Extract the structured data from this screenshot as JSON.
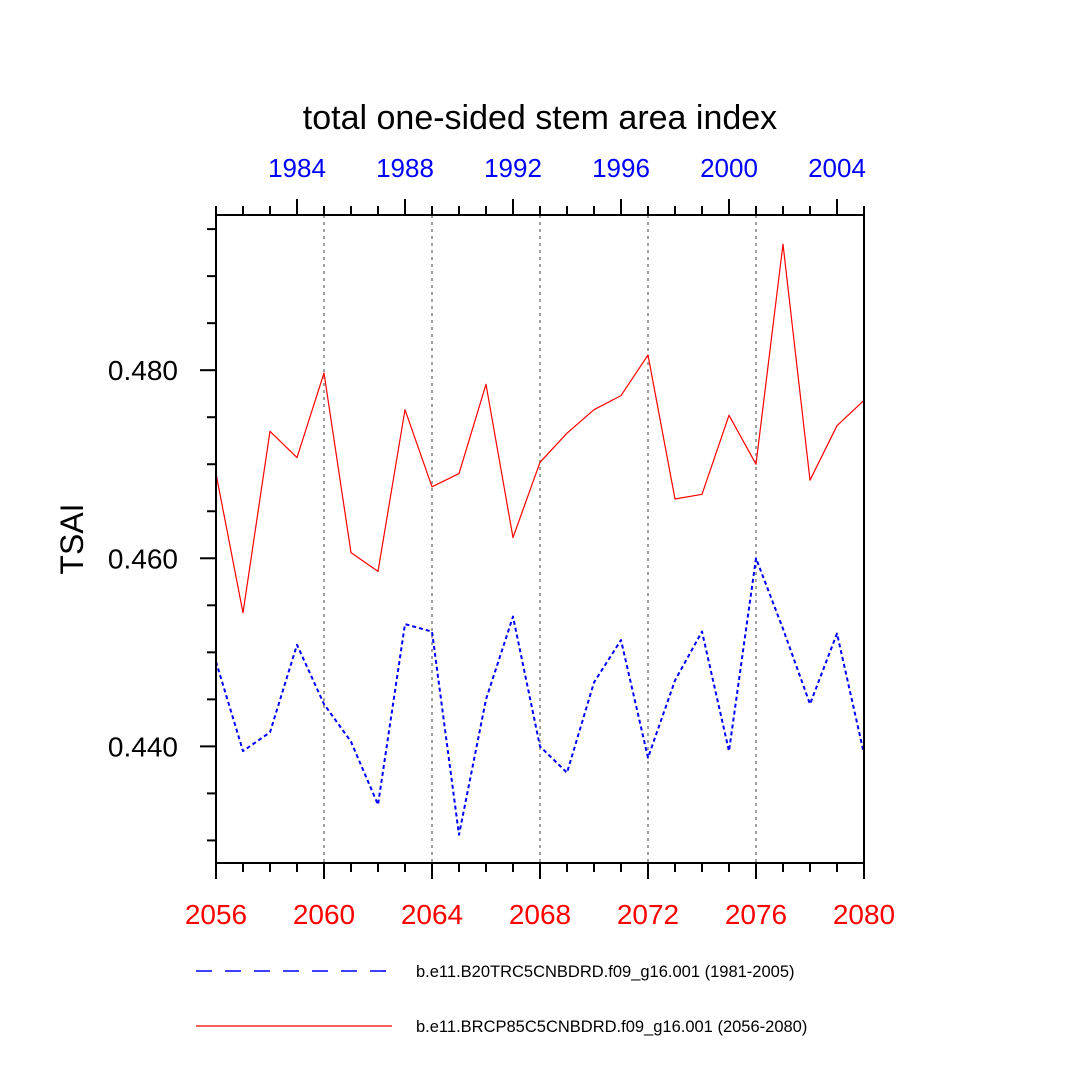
{
  "chart_data": {
    "type": "line",
    "title": "total one-sided stem area index",
    "ylabel": "TSAI",
    "xlabel": "",
    "x_bottom": {
      "range": [
        2056,
        2080
      ],
      "ticks": [
        2056,
        2060,
        2064,
        2068,
        2072,
        2076,
        2080
      ],
      "color": "#ff0000"
    },
    "x_top": {
      "range": [
        1981,
        2005
      ],
      "ticks": [
        1984,
        1988,
        1992,
        1996,
        2000,
        2004
      ],
      "color": "#0000ff"
    },
    "y": {
      "range": [
        0.4276,
        0.4965
      ],
      "ticks": [
        0.44,
        0.46,
        0.48
      ],
      "tick_labels": [
        "0.440",
        "0.460",
        "0.480"
      ],
      "minor_step": 0.005
    },
    "grid": "vertical dotted at major bottom ticks",
    "legend_position": "bottom",
    "series": [
      {
        "name": "b.e11.B20TRC5CNBDRD.f09_g16.001 (1981-2005)",
        "axis": "top",
        "color": "#0000ff",
        "style": "dashed",
        "x": [
          1981,
          1982,
          1983,
          1984,
          1985,
          1986,
          1987,
          1988,
          1989,
          1990,
          1991,
          1992,
          1993,
          1994,
          1995,
          1996,
          1997,
          1998,
          1999,
          2000,
          2001,
          2002,
          2003,
          2004,
          2005
        ],
        "values": [
          0.449,
          0.4395,
          0.4415,
          0.4508,
          0.4445,
          0.4405,
          0.4338,
          0.453,
          0.4522,
          0.4306,
          0.445,
          0.4538,
          0.44,
          0.4372,
          0.4468,
          0.4513,
          0.4388,
          0.447,
          0.4522,
          0.4395,
          0.46,
          0.4525,
          0.4445,
          0.452,
          0.4392
        ]
      },
      {
        "name": "b.e11.BRCP85C5CNBDRD.f09_g16.001 (2056-2080)",
        "axis": "bottom",
        "color": "#ff0000",
        "style": "solid",
        "x": [
          2056,
          2057,
          2058,
          2059,
          2060,
          2061,
          2062,
          2063,
          2064,
          2065,
          2066,
          2067,
          2068,
          2069,
          2070,
          2071,
          2072,
          2073,
          2074,
          2075,
          2076,
          2077,
          2078,
          2079,
          2080
        ],
        "values": [
          0.469,
          0.4542,
          0.4735,
          0.4707,
          0.4797,
          0.4606,
          0.4586,
          0.4758,
          0.4676,
          0.469,
          0.4785,
          0.4622,
          0.4702,
          0.4733,
          0.4758,
          0.4773,
          0.4816,
          0.4663,
          0.4668,
          0.4752,
          0.47,
          0.4934,
          0.4683,
          0.4741,
          0.4768
        ]
      }
    ]
  }
}
